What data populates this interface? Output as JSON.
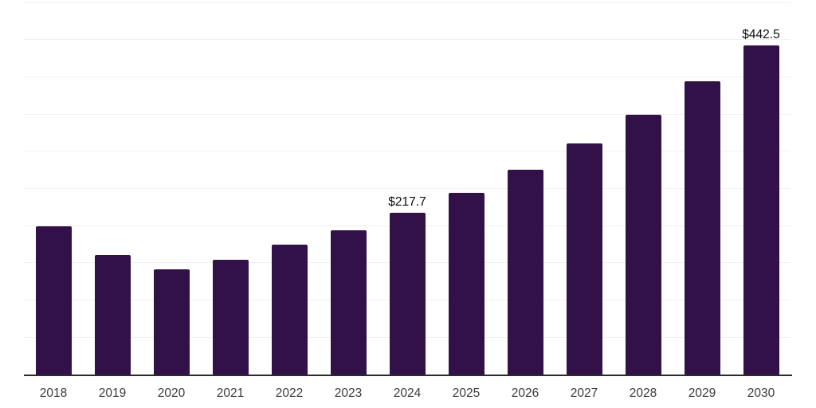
{
  "chart_data": {
    "type": "bar",
    "title": "",
    "xlabel": "",
    "ylabel": "",
    "categories": [
      "2018",
      "2019",
      "2020",
      "2021",
      "2022",
      "2023",
      "2024",
      "2025",
      "2026",
      "2027",
      "2028",
      "2029",
      "2030"
    ],
    "values": [
      199,
      160.5,
      141,
      154.5,
      174,
      194,
      217.7,
      244.5,
      275,
      310,
      349,
      393.5,
      442.5
    ],
    "data_labels": {
      "2024": "$217.7",
      "2030": "$442.5"
    },
    "ylim": [
      0,
      500
    ],
    "gridline_interval": 50,
    "grid": "horizontal-only",
    "legend": "none",
    "colors": {
      "bar": "#311147",
      "background": "#ffffff",
      "gridline": "#f1f1f1",
      "axis_line": "#2b2b2b",
      "tick_label": "#3c3c3c",
      "data_label": "#0d0d0d"
    }
  }
}
